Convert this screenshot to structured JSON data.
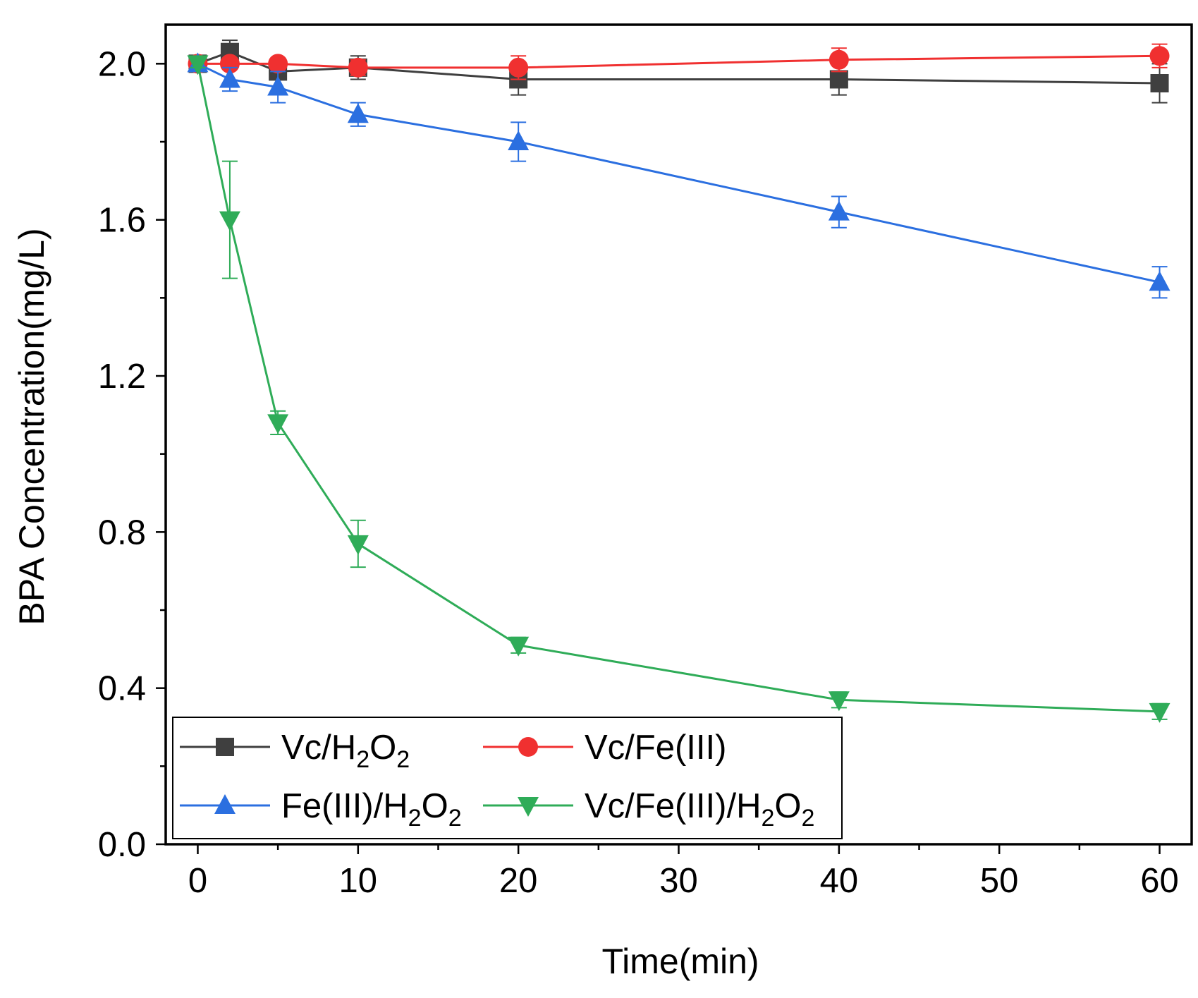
{
  "chart_data": {
    "type": "line",
    "title": "",
    "xlabel": "Time(min)",
    "ylabel": "BPA Concentration(mg/L)",
    "xlim": [
      -2,
      62
    ],
    "ylim": [
      0,
      2.1
    ],
    "xticks": [
      0,
      10,
      20,
      30,
      40,
      50,
      60
    ],
    "xtick_labels": [
      "0",
      "10",
      "20",
      "30",
      "40",
      "50",
      "60"
    ],
    "yticks": [
      0.0,
      0.4,
      0.8,
      1.2,
      1.6,
      2.0
    ],
    "ytick_labels": [
      "0.0",
      "0.4",
      "0.8",
      "1.2",
      "1.6",
      "2.0"
    ],
    "grid": false,
    "legend_position": "bottom-left",
    "x": [
      0,
      2,
      5,
      10,
      20,
      40,
      60
    ],
    "series": [
      {
        "name": "Vc/H2O2",
        "label_parts": [
          [
            "Vc/H",
            false
          ],
          [
            "2",
            true
          ],
          [
            "O",
            false
          ],
          [
            "2",
            true
          ]
        ],
        "color": "#3f3f3f",
        "marker": "square",
        "values": [
          2.0,
          2.03,
          1.98,
          1.99,
          1.96,
          1.96,
          1.95
        ],
        "errors": [
          0.01,
          0.03,
          0.02,
          0.03,
          0.04,
          0.04,
          0.05
        ]
      },
      {
        "name": "Vc/Fe(III)",
        "label_parts": [
          [
            "Vc/Fe(III)",
            false
          ]
        ],
        "color": "#f03030",
        "marker": "circle",
        "values": [
          2.0,
          2.0,
          2.0,
          1.99,
          1.99,
          2.01,
          2.02
        ],
        "errors": [
          0.01,
          0.01,
          0.01,
          0.02,
          0.03,
          0.03,
          0.03
        ]
      },
      {
        "name": "Fe(III)/H2O2",
        "label_parts": [
          [
            "Fe(III)/H",
            false
          ],
          [
            "2",
            true
          ],
          [
            "O",
            false
          ],
          [
            "2",
            true
          ]
        ],
        "color": "#2b6fe0",
        "marker": "triangle-up",
        "values": [
          2.0,
          1.96,
          1.94,
          1.87,
          1.8,
          1.62,
          1.44
        ],
        "errors": [
          0.01,
          0.03,
          0.04,
          0.03,
          0.05,
          0.04,
          0.04
        ]
      },
      {
        "name": "Vc/Fe(III)/H2O2",
        "label_parts": [
          [
            "Vc/Fe(III)/H",
            false
          ],
          [
            "2",
            true
          ],
          [
            "O",
            false
          ],
          [
            "2",
            true
          ]
        ],
        "color": "#2fac58",
        "marker": "triangle-down",
        "values": [
          2.0,
          1.6,
          1.08,
          0.77,
          0.51,
          0.37,
          0.34
        ],
        "errors": [
          0.01,
          0.15,
          0.03,
          0.06,
          0.02,
          0.02,
          0.02
        ]
      }
    ]
  }
}
